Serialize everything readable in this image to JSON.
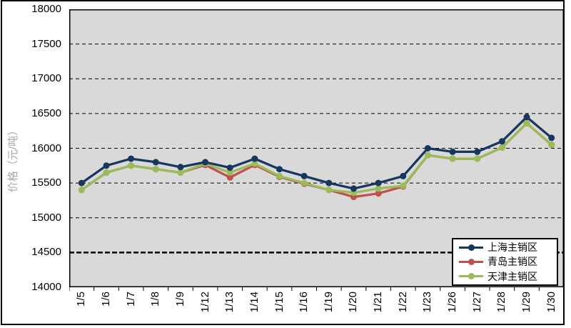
{
  "chart_data": {
    "type": "line",
    "title": "",
    "xlabel": "",
    "ylabel": "价格（元/吨）",
    "ylabel_color": "#A6A6A6",
    "ylim": [
      14000,
      18000
    ],
    "ystep": 500,
    "y_ticks": [
      "18000",
      "17500",
      "17000",
      "16500",
      "16000",
      "15500",
      "15000",
      "14500",
      "14000"
    ],
    "bold_gridline_at": 14500,
    "grid": "horizontal-dashed",
    "plot_bg": "#D9D9D9",
    "legend_position": "inside-bottom-right",
    "categories": [
      "1/5",
      "1/6",
      "1/7",
      "1/8",
      "1/9",
      "1/12",
      "1/13",
      "1/14",
      "1/15",
      "1/16",
      "1/19",
      "1/20",
      "1/21",
      "1/22",
      "1/23",
      "1/26",
      "1/27",
      "1/28",
      "1/29",
      "1/30"
    ],
    "series": [
      {
        "name": "上海主销区",
        "color": "#17375E",
        "values": [
          15500,
          15750,
          15850,
          15800,
          15730,
          15800,
          15720,
          15850,
          15700,
          15600,
          15500,
          15420,
          15500,
          15600,
          16000,
          15950,
          15950,
          16100,
          16450,
          16150
        ]
      },
      {
        "name": "青岛主销区",
        "color": "#C0504D",
        "values": [
          15400,
          15650,
          15750,
          15700,
          15650,
          15760,
          15580,
          15760,
          15590,
          15490,
          15400,
          15300,
          15350,
          15450,
          15900,
          15850,
          15850,
          16010,
          16360,
          16050
        ]
      },
      {
        "name": "天津主销区",
        "color": "#9BBB59",
        "values": [
          15400,
          15650,
          15750,
          15700,
          15650,
          15780,
          15650,
          15780,
          15600,
          15500,
          15400,
          15360,
          15420,
          15460,
          15900,
          15850,
          15850,
          16010,
          16360,
          16050
        ]
      }
    ],
    "draw_order": [
      1,
      2,
      0
    ]
  }
}
